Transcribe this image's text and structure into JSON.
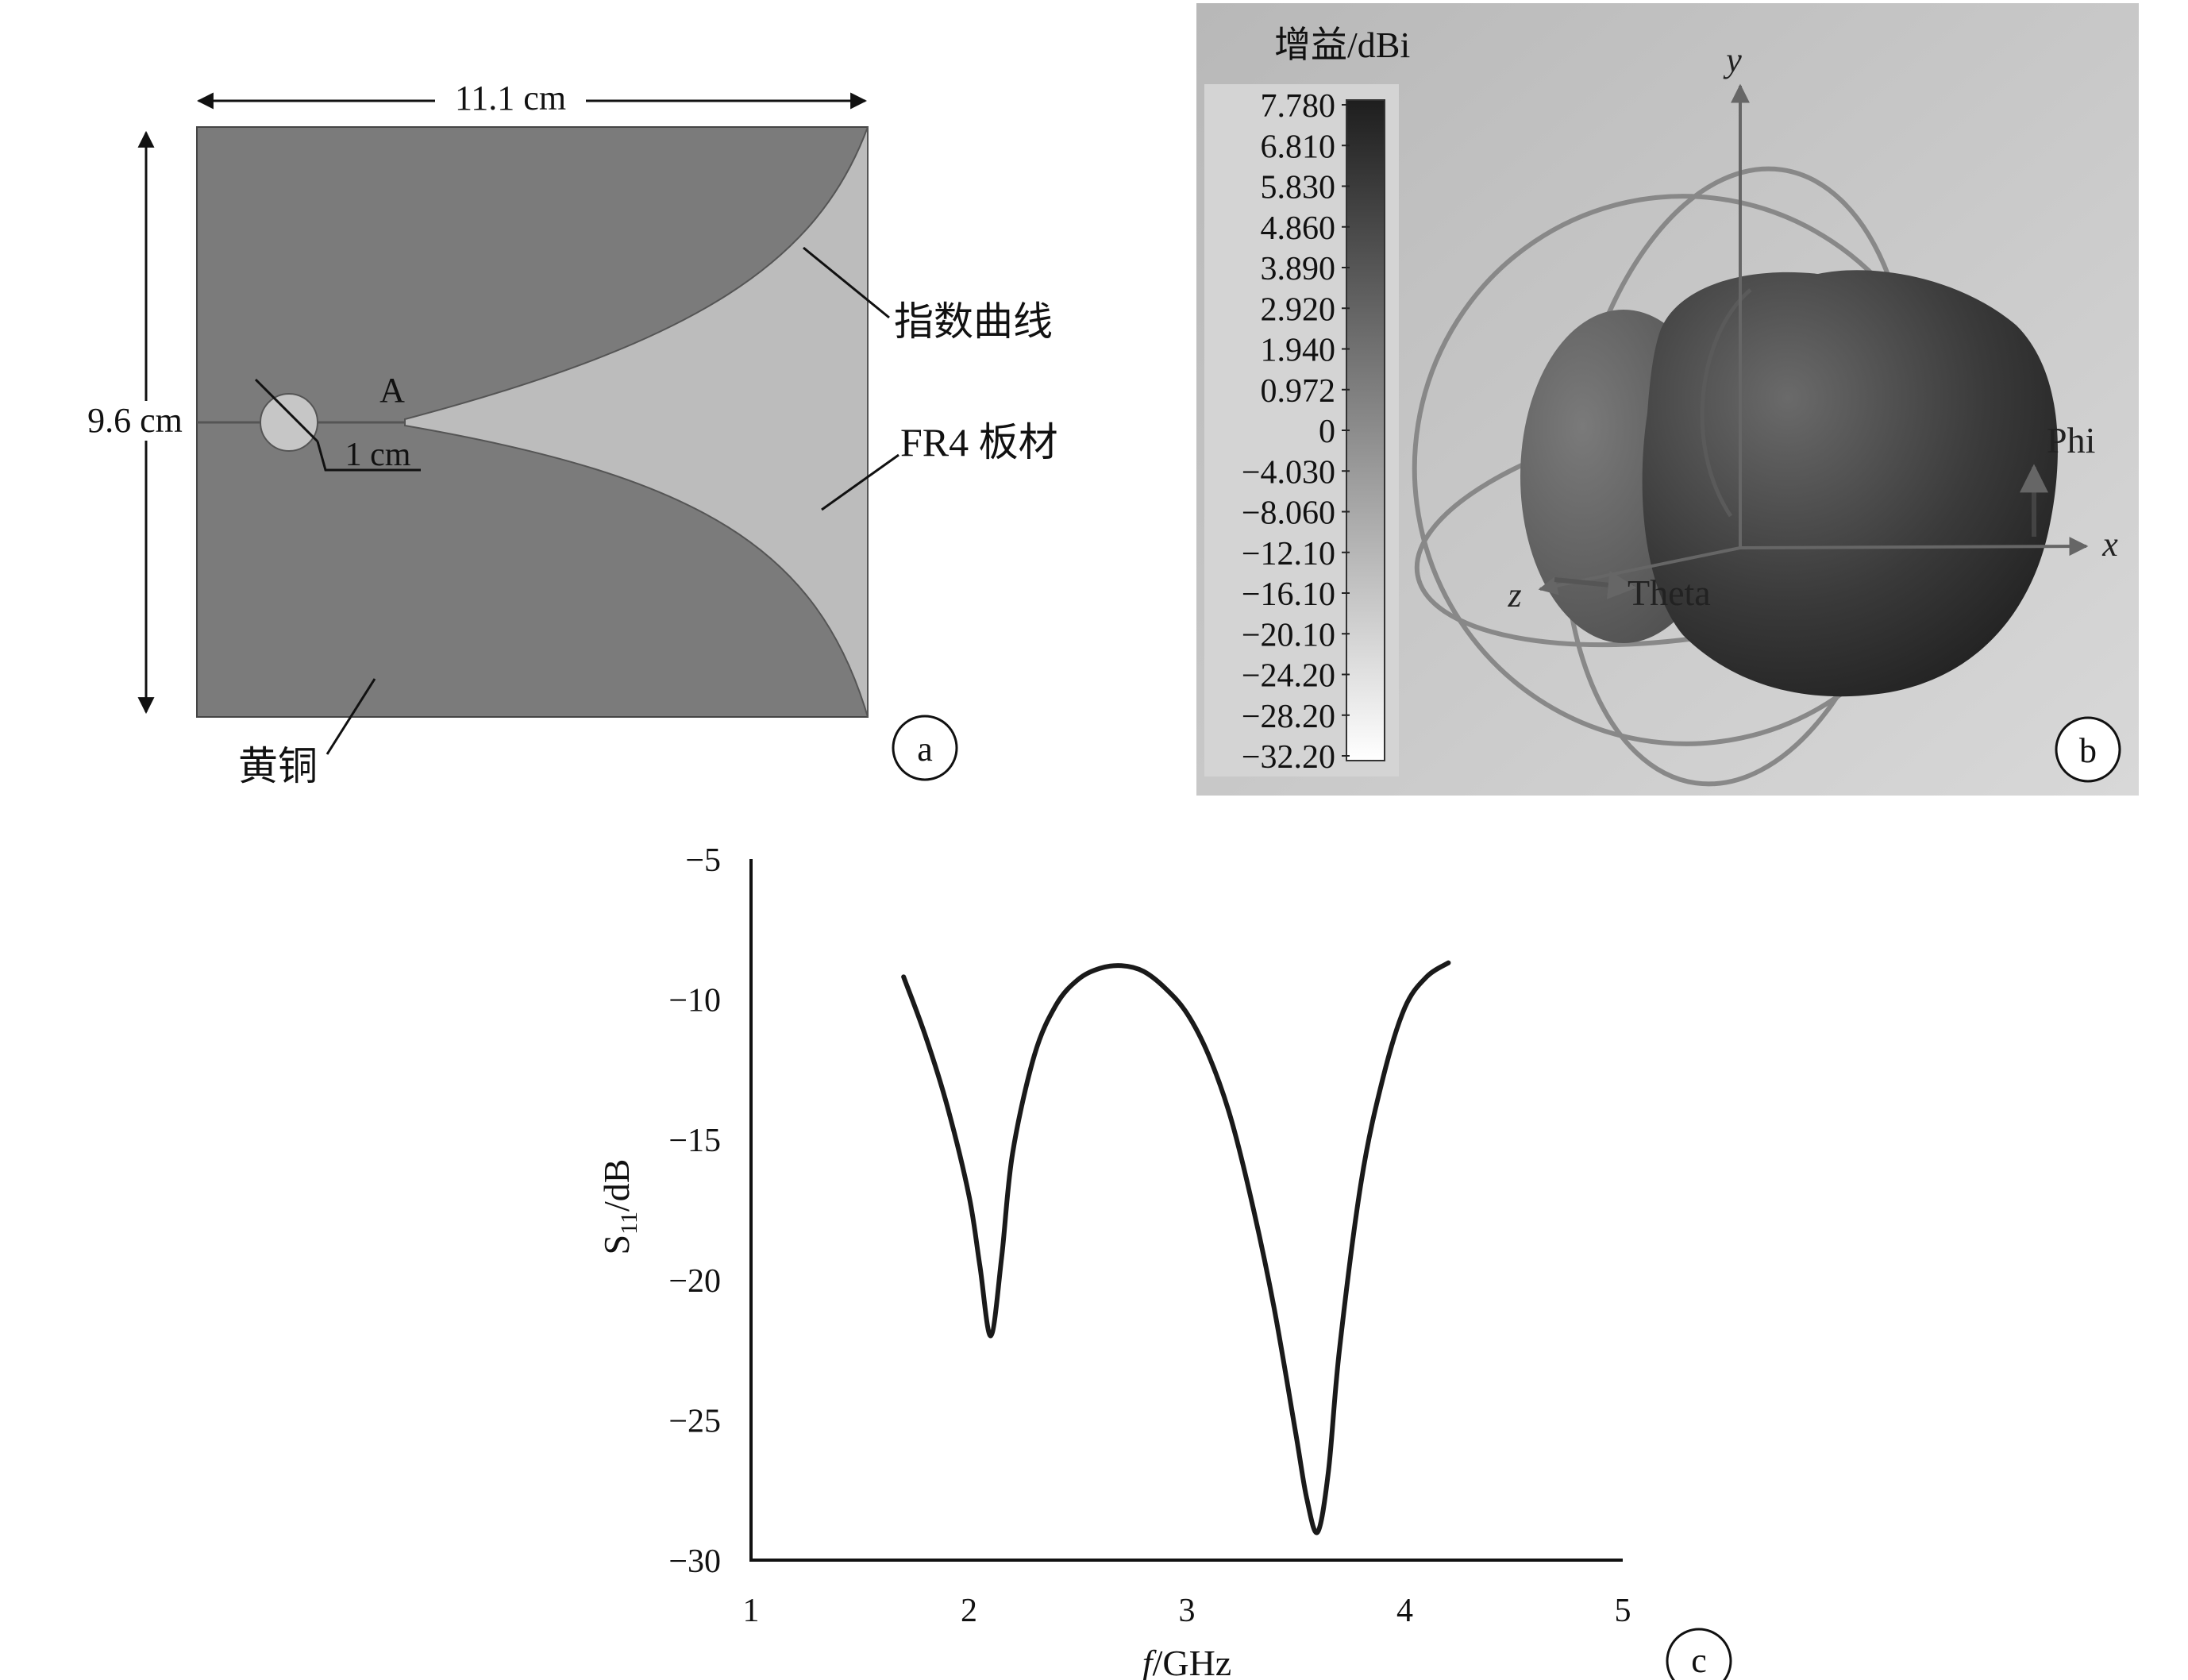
{
  "panel_a": {
    "width_label": "11.1 cm",
    "height_label": "9.6 cm",
    "point_label": "A",
    "circle_label": "1 cm",
    "curve_label": "指数曲线",
    "board_label": "FR4 板材",
    "brass_label": "黄铜",
    "tag": "a",
    "colors": {
      "brass": "#7b7b7b",
      "board": "#bcbcbc",
      "circle": "#c6c6c6"
    }
  },
  "panel_b": {
    "legend_title": "增益/dBi",
    "legend_ticks": [
      "7.780",
      "6.810",
      "5.830",
      "4.860",
      "3.890",
      "2.920",
      "1.940",
      "0.972",
      "0",
      "−4.030",
      "−8.060",
      "−12.10",
      "−16.10",
      "−20.10",
      "−24.20",
      "−28.20",
      "−32.20"
    ],
    "axis_y": "y",
    "axis_x": "x",
    "axis_z": "z",
    "phi_label": "Phi",
    "theta_label": "Theta",
    "tag": "b",
    "colors": {
      "background": "#c9c9c9",
      "scale_top": "#1e1e1e",
      "scale_bottom": "#ffffff",
      "ring": "#888888"
    }
  },
  "panel_c": {
    "tag": "c",
    "chart_data": {
      "type": "line",
      "xlabel_italic": "f",
      "xlabel_rest": "/GHz",
      "ylabel_main": "S",
      "ylabel_sub": "11",
      "ylabel_rest": "/dB",
      "xlim": [
        1,
        5
      ],
      "ylim": [
        -30,
        -5
      ],
      "x_ticks": [
        "1",
        "2",
        "3",
        "4",
        "5"
      ],
      "y_ticks": [
        "−5",
        "−10",
        "−15",
        "−20",
        "−25",
        "−30"
      ],
      "series": [
        {
          "color": "#1a1a1a",
          "x": [
            1.7,
            1.8,
            1.9,
            2.0,
            2.05,
            2.1,
            2.15,
            2.2,
            2.3,
            2.4,
            2.5,
            2.6,
            2.7,
            2.8,
            2.9,
            3.0,
            3.1,
            3.2,
            3.3,
            3.4,
            3.5,
            3.55,
            3.6,
            3.65,
            3.7,
            3.8,
            3.9,
            4.0,
            4.1,
            4.2
          ],
          "y": [
            -9.2,
            -11.3,
            -13.8,
            -17.0,
            -19.5,
            -22.0,
            -19.2,
            -15.5,
            -12.0,
            -10.2,
            -9.3,
            -8.9,
            -8.8,
            -9.0,
            -9.6,
            -10.5,
            -12.0,
            -14.2,
            -17.3,
            -21.0,
            -25.5,
            -27.8,
            -29.0,
            -26.8,
            -22.5,
            -16.5,
            -12.8,
            -10.3,
            -9.2,
            -8.7
          ]
        }
      ]
    }
  }
}
